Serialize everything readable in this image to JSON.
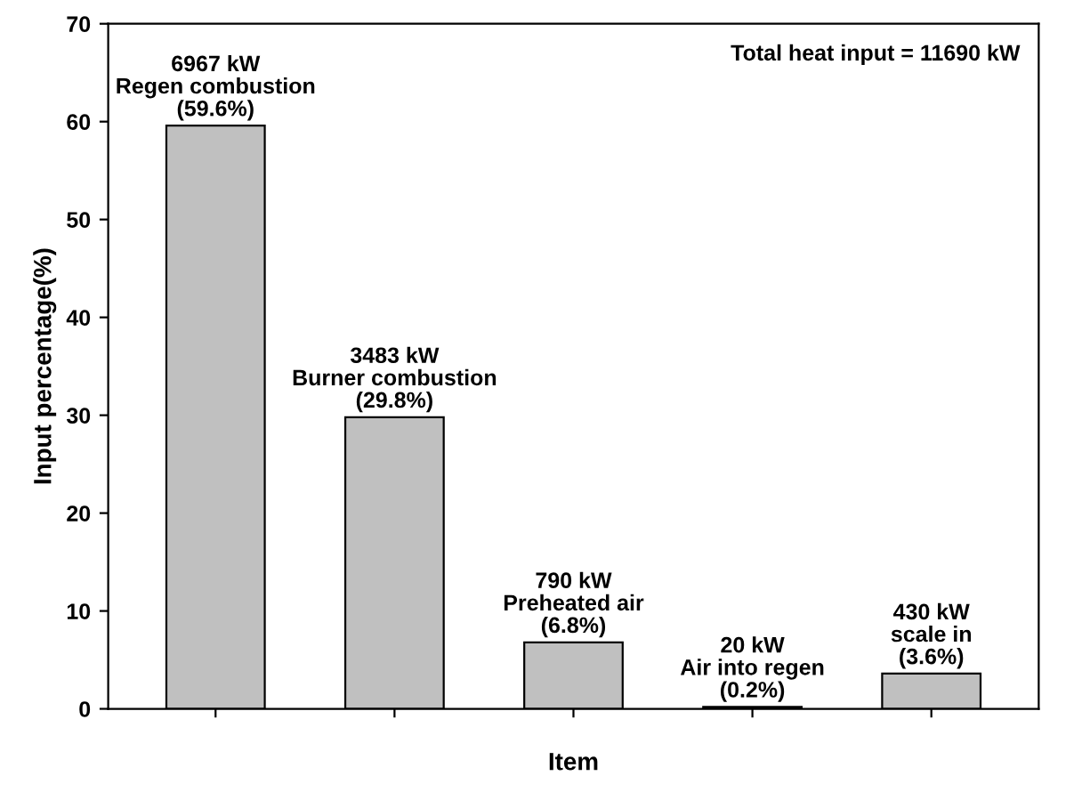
{
  "chart_data": {
    "type": "bar",
    "xlabel": "Item",
    "ylabel": "Input percentage(%)",
    "categories": [
      null,
      null,
      null,
      null,
      null
    ],
    "values": [
      59.6,
      29.8,
      6.8,
      0.2,
      3.6
    ],
    "color": "#c0c0c0",
    "value_labels": [
      "6967 kW\nRegen combustion\n(59.6%)",
      "3483 kW\nBurner combustion\n(29.8%)",
      "790 kW\nPreheated air\n(6.8%)",
      "20 kW\nAir into regen\n(0.2%)",
      "430 kW\nscale in\n(3.6%)"
    ],
    "annotations": [
      "Total heat input = 11690 kW"
    ],
    "ylim": [
      0,
      70
    ],
    "yticks": [
      0,
      10,
      20,
      30,
      40,
      50,
      60,
      70
    ],
    "tick_labels": "y",
    "grid": false,
    "legend": false
  }
}
